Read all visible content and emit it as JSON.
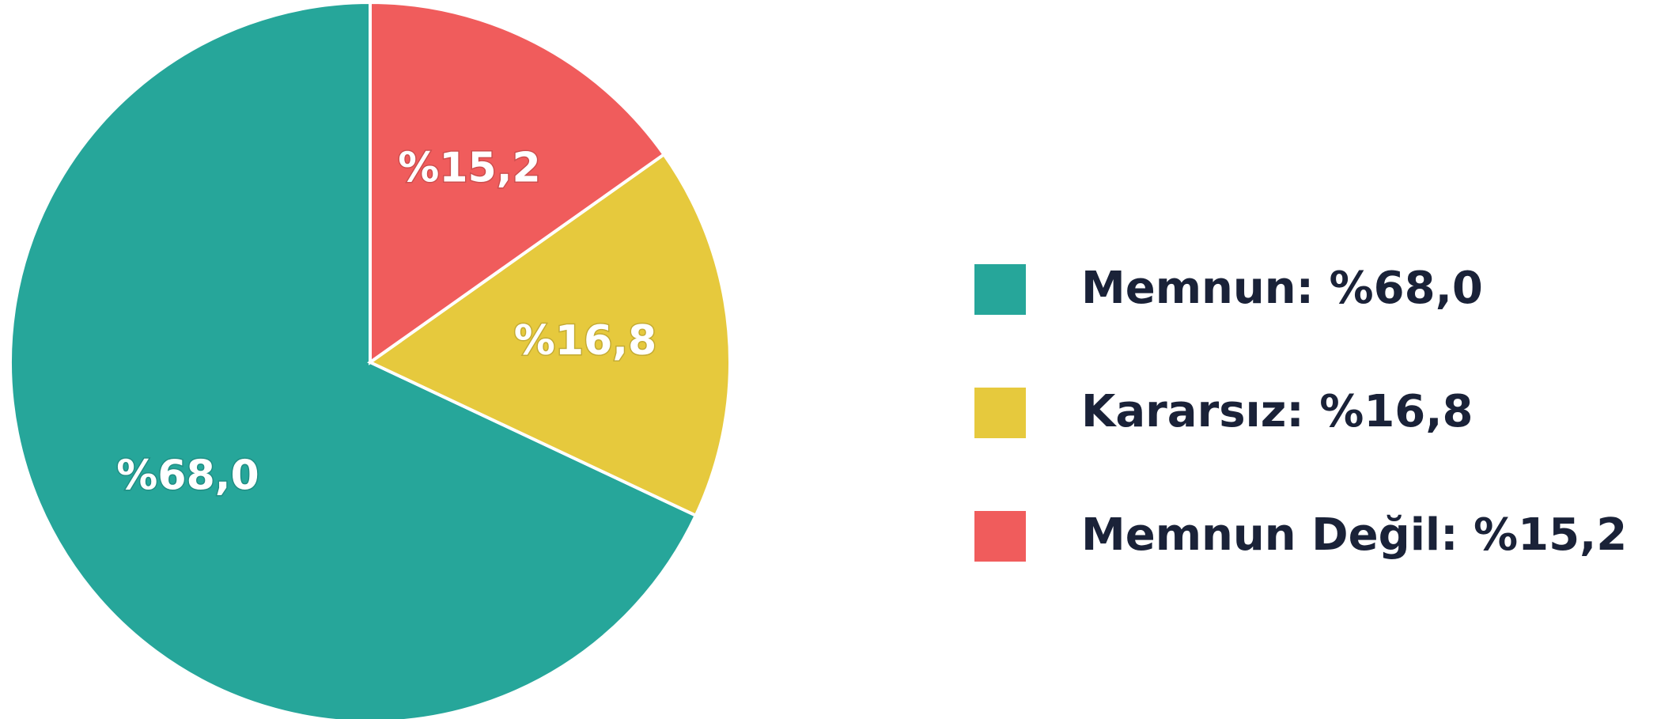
{
  "chart_data": {
    "type": "pie",
    "categories": [
      "Memnun: %68,0",
      "Kararsız: %16,8",
      "Memnun Değil: %15,2"
    ],
    "values": [
      68.0,
      16.8,
      15.2
    ],
    "value_labels": [
      "%68,0",
      "%16,8",
      "%15,2"
    ],
    "colors": [
      "#26a69a",
      "#e6c93d",
      "#f05c5c"
    ],
    "legend": "right"
  }
}
